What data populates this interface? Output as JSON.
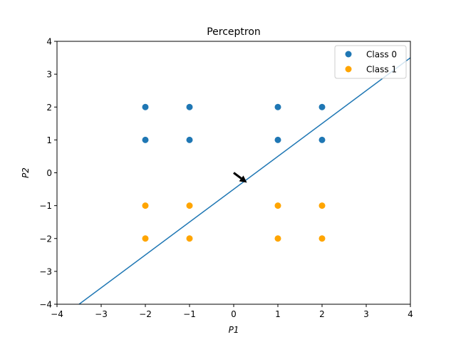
{
  "chart_data": {
    "type": "scatter",
    "title": "Perceptron",
    "xlabel": "P1",
    "ylabel": "P2",
    "xlim": [
      -4,
      4
    ],
    "ylim": [
      -4,
      4
    ],
    "xticks": [
      -4,
      -3,
      -2,
      -1,
      0,
      1,
      2,
      3,
      4
    ],
    "yticks": [
      -4,
      -3,
      -2,
      -1,
      0,
      1,
      2,
      3,
      4
    ],
    "grid": false,
    "legend_position": "top-right",
    "series": [
      {
        "name": "Class 0",
        "color": "#1f77b4",
        "points": [
          [
            -2,
            2
          ],
          [
            -1,
            2
          ],
          [
            1,
            2
          ],
          [
            2,
            2
          ],
          [
            -2,
            1
          ],
          [
            -1,
            1
          ],
          [
            1,
            1
          ],
          [
            2,
            1
          ]
        ]
      },
      {
        "name": "Class 1",
        "color": "#ffa500",
        "points": [
          [
            -2,
            -1
          ],
          [
            -1,
            -1
          ],
          [
            1,
            -1
          ],
          [
            2,
            -1
          ],
          [
            -2,
            -2
          ],
          [
            -1,
            -2
          ],
          [
            1,
            -2
          ],
          [
            2,
            -2
          ]
        ]
      }
    ],
    "decision_boundary": {
      "color": "#1f77b4",
      "points": [
        [
          -3.5,
          -4
        ],
        [
          4,
          3.5
        ]
      ]
    },
    "weight_arrow": {
      "color": "#000000",
      "from": [
        0,
        0
      ],
      "to": [
        0.3,
        -0.3
      ]
    }
  }
}
